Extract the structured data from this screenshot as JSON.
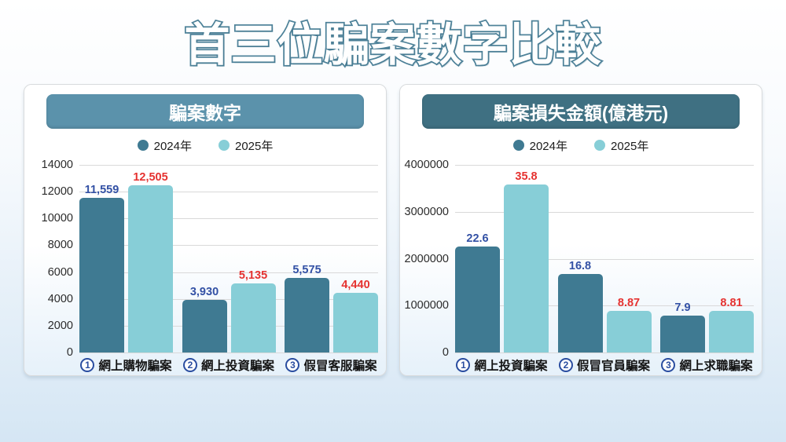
{
  "page_title": "首三位騙案數字比較",
  "colors": {
    "title_outline": "#4e8299",
    "series_2024": "#3f7a92",
    "series_2025": "#87ced7",
    "label_2024": "#3351a5",
    "label_2025": "#e53230",
    "rank_badge": "#2a4da0"
  },
  "chart_data": [
    {
      "type": "bar",
      "title": "騙案數字",
      "header_color": "#5b92ab",
      "legend_position": "top-center",
      "grid": true,
      "categories": [
        "網上購物騙案",
        "網上投資騙案",
        "假冒客服騙案"
      ],
      "category_ranks": [
        "1",
        "2",
        "3"
      ],
      "series": [
        {
          "name": "2024年",
          "color": "#3f7a92",
          "label_color": "#3351a5",
          "values": [
            11559,
            3930,
            5575
          ],
          "value_labels": [
            "11,559",
            "3,930",
            "5,575"
          ]
        },
        {
          "name": "2025年",
          "color": "#87ced7",
          "label_color": "#e53230",
          "values": [
            12505,
            5135,
            4440
          ],
          "value_labels": [
            "12,505",
            "5,135",
            "4,440"
          ]
        }
      ],
      "axis_multiplier": 1,
      "ylim": [
        0,
        14000
      ],
      "yticks": [
        "14000",
        "12000",
        "10000",
        "8000",
        "6000",
        "4000",
        "2000",
        "0"
      ]
    },
    {
      "type": "bar",
      "title": "騙案損失金額(億港元)",
      "header_color": "#3f7082",
      "legend_position": "top-center",
      "grid": true,
      "categories": [
        "網上投資騙案",
        "假冒官員騙案",
        "網上求職騙案"
      ],
      "category_ranks": [
        "1",
        "2",
        "3"
      ],
      "series": [
        {
          "name": "2024年",
          "color": "#3f7a92",
          "label_color": "#3351a5",
          "values": [
            22.6,
            16.8,
            7.9
          ],
          "value_labels": [
            "22.6",
            "16.8",
            "7.9"
          ]
        },
        {
          "name": "2025年",
          "color": "#87ced7",
          "label_color": "#e53230",
          "values": [
            35.8,
            8.87,
            8.81
          ],
          "value_labels": [
            "35.8",
            "8.87",
            "8.81"
          ]
        }
      ],
      "axis_multiplier": 100000,
      "ylim": [
        0,
        4000000
      ],
      "yticks": [
        "4000000",
        "3000000",
        "2000000",
        "1000000",
        "0"
      ]
    }
  ]
}
